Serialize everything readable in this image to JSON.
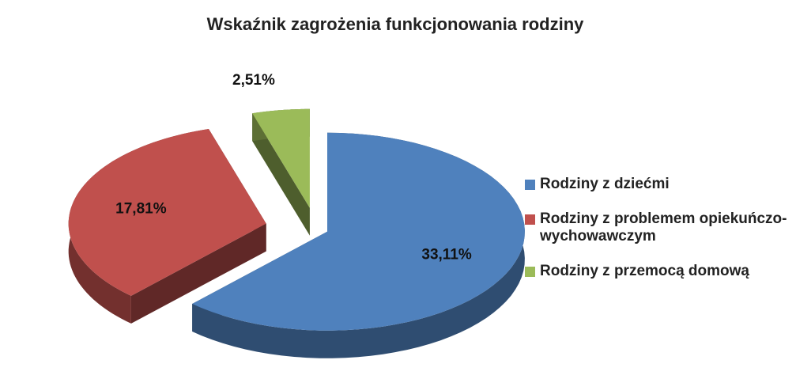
{
  "chart_data": {
    "type": "pie",
    "title": "Wskaźnik zagrożenia funkcjonowania rodziny",
    "categories": [
      "Rodziny z dziećmi",
      "Rodziny z problemem opiekuńczo-wychowawczym",
      "Rodziny z przemocą domową"
    ],
    "values": [
      33.11,
      17.81,
      2.51
    ],
    "value_labels": [
      "33,11%",
      "17,81%",
      "2,51%"
    ],
    "colors": [
      "#4f81bd",
      "#c0504d",
      "#9bbb59"
    ],
    "legend": "right"
  }
}
